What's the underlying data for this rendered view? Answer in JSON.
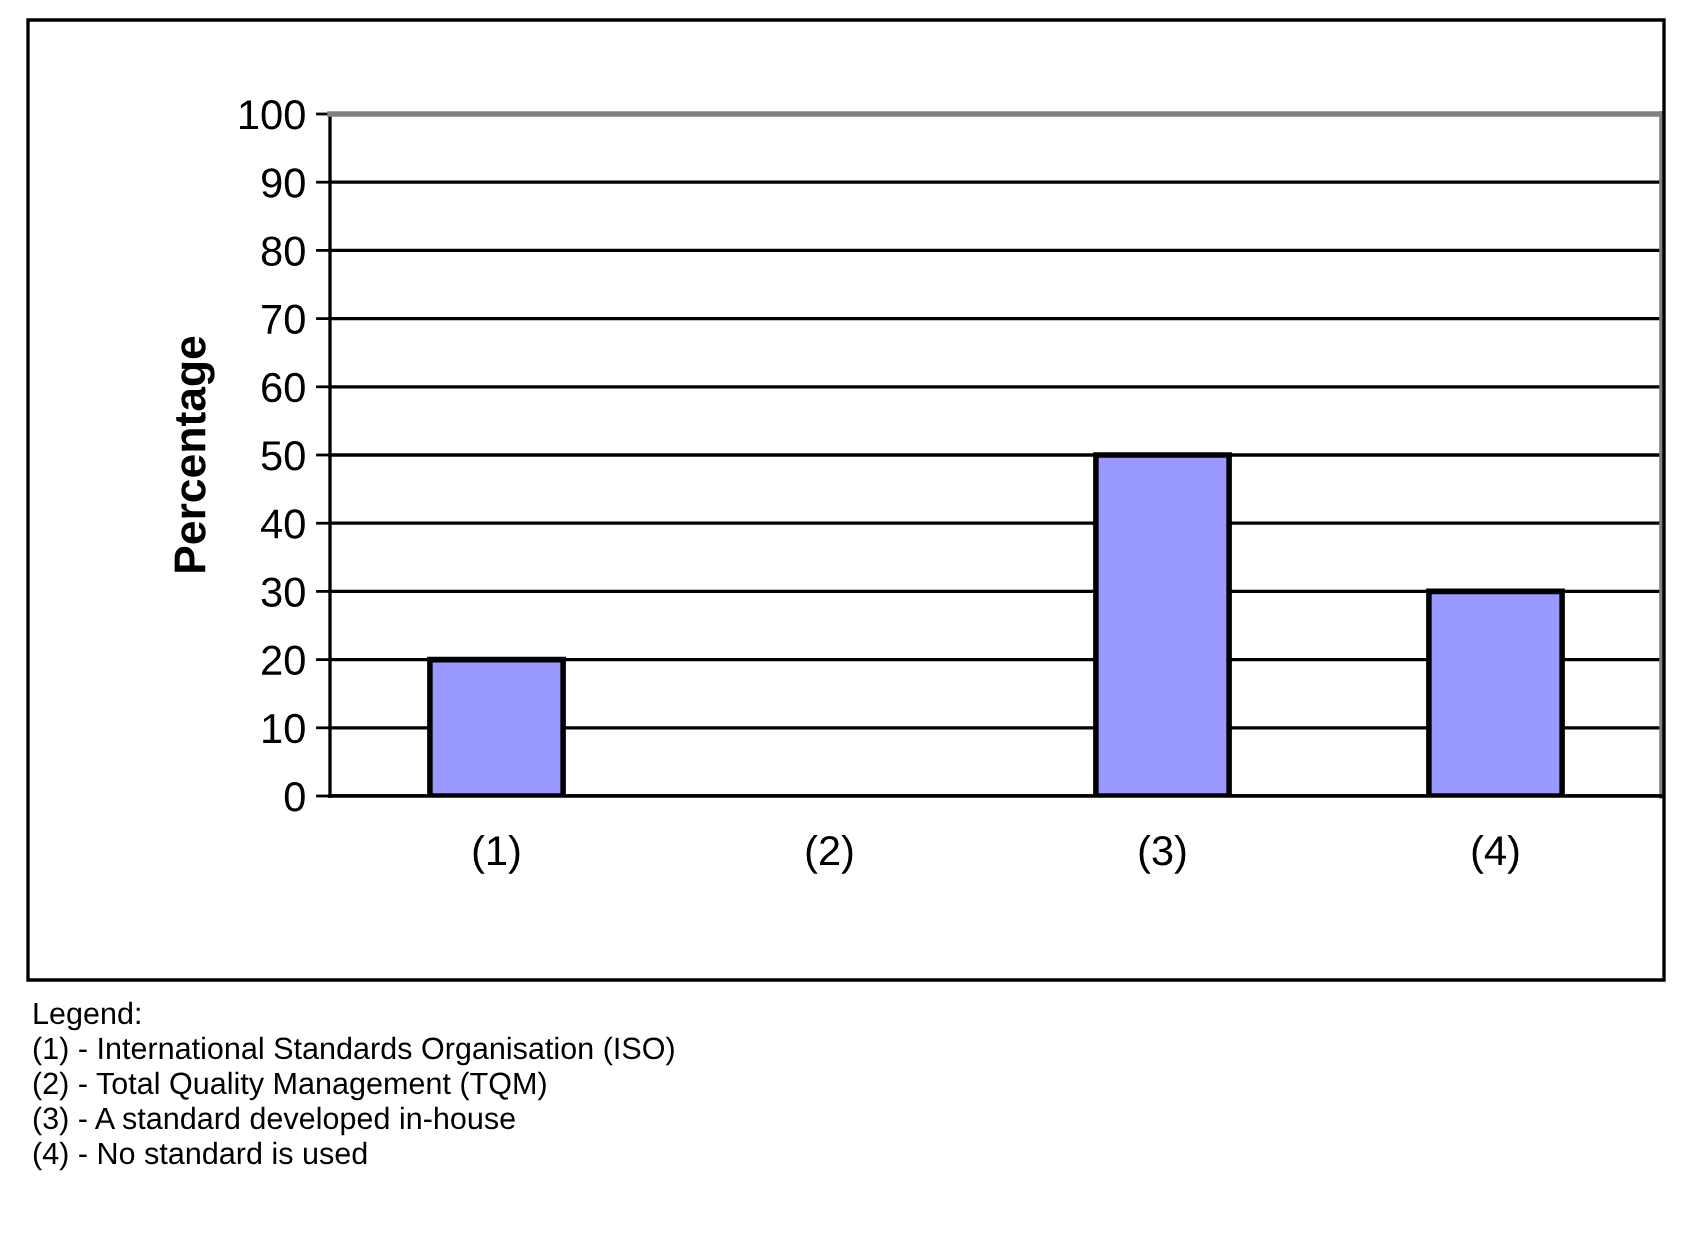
{
  "chart_data": {
    "type": "bar",
    "ylabel": "Percentage",
    "categories": [
      "(1)",
      "(2)",
      "(3)",
      "(4)"
    ],
    "values": [
      20,
      0,
      50,
      30
    ],
    "color": "#9999ff",
    "ylim": [
      0,
      100
    ],
    "yticks": [
      0,
      10,
      20,
      30,
      40,
      50,
      60,
      70,
      80,
      90,
      100
    ],
    "grid": "y",
    "legend": false,
    "annotations": [
      "Legend:",
      "(1) - International Standards Organisation (ISO)",
      "(2) - Total Quality Management (TQM)",
      "(3) - A standard developed in-house",
      "(4) - No standard is used"
    ]
  }
}
